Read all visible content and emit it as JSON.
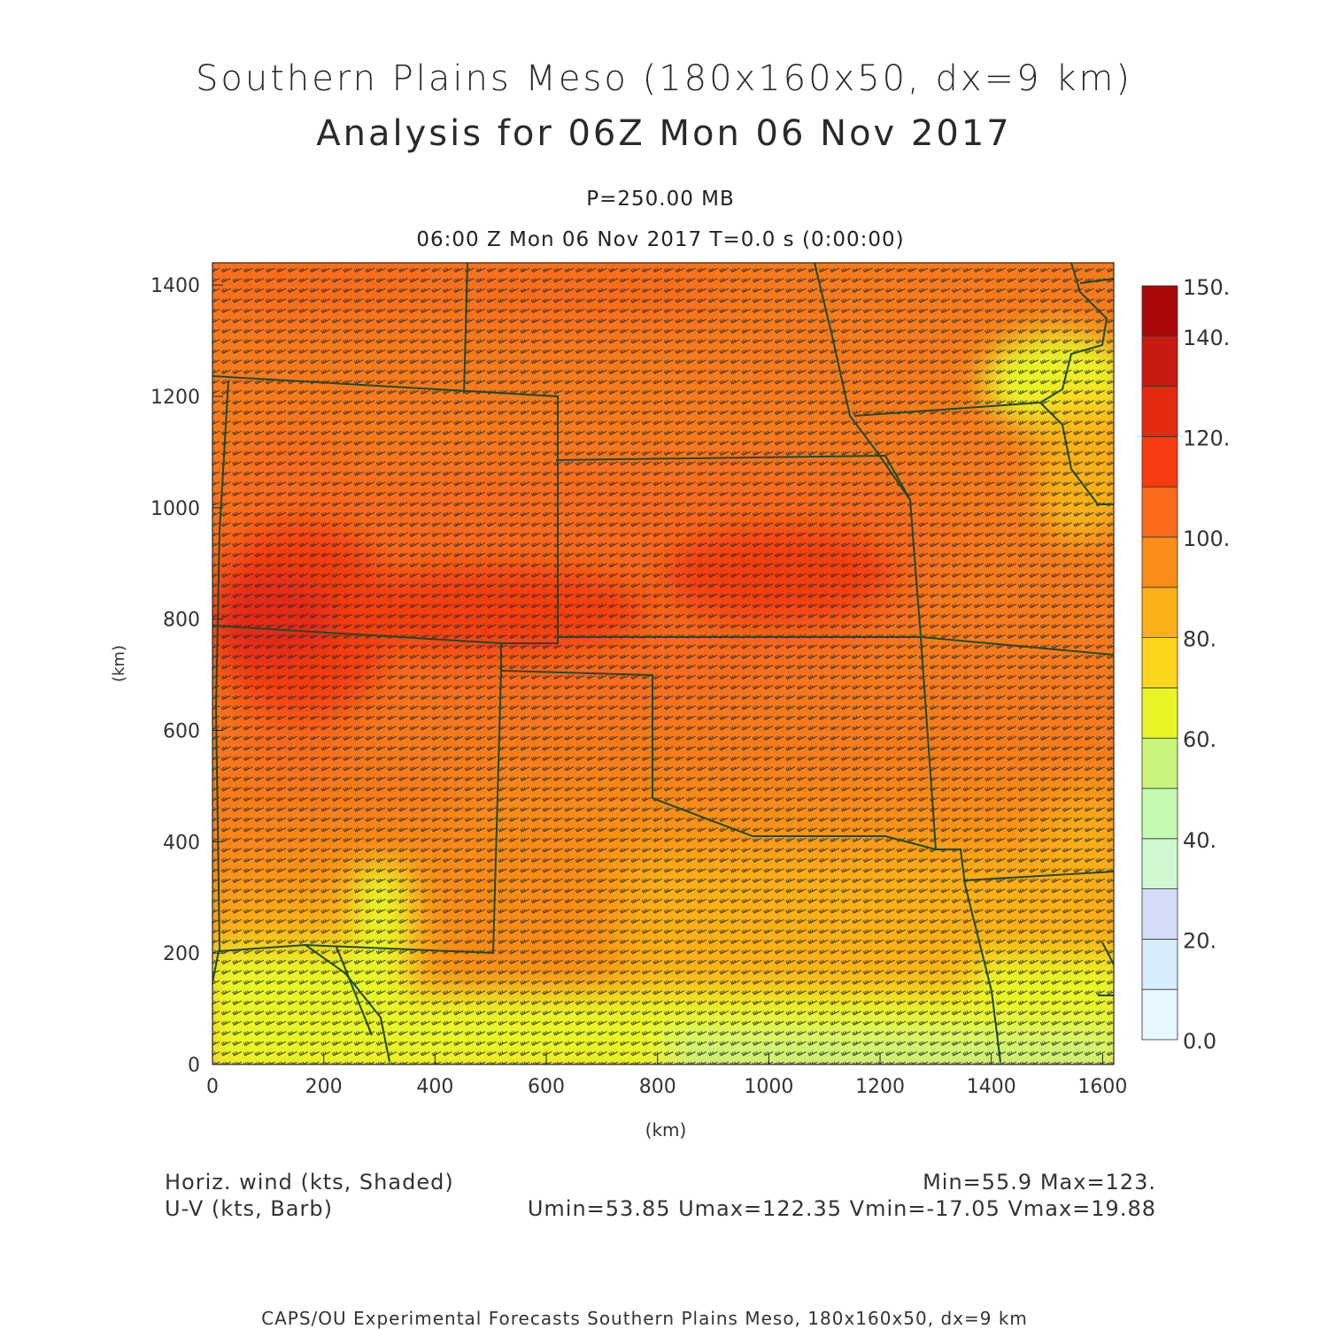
{
  "header": {
    "title_line1": "Southern Plains Meso (180x160x50, dx=9 km)",
    "title_line2": "Analysis for 06Z Mon 06 Nov 2017",
    "level": "P=250.00 MB",
    "time": "06:00 Z Mon 06 Nov 2017    T=0.0 s (0:00:00)"
  },
  "axes": {
    "x_label": "(km)",
    "y_label": "(km)",
    "x_ticks": [
      0,
      200,
      400,
      600,
      800,
      1000,
      1200,
      1400,
      1600
    ],
    "y_ticks": [
      0,
      200,
      400,
      600,
      800,
      1000,
      1200,
      1400
    ],
    "x_range": [
      0,
      1620
    ],
    "y_range": [
      0,
      1440
    ]
  },
  "colorbar": {
    "labels": [
      "0.0",
      "20.",
      "40.",
      "60.",
      "80.",
      "100.",
      "120.",
      "140.",
      "150."
    ],
    "bins": [
      {
        "lo": 0,
        "hi": 10,
        "color": "#e6f7ff"
      },
      {
        "lo": 10,
        "hi": 20,
        "color": "#d5edfd"
      },
      {
        "lo": 20,
        "hi": 30,
        "color": "#d5def8"
      },
      {
        "lo": 30,
        "hi": 40,
        "color": "#d0f8d0"
      },
      {
        "lo": 40,
        "hi": 50,
        "color": "#c4fbb0"
      },
      {
        "lo": 50,
        "hi": 60,
        "color": "#c9f57b"
      },
      {
        "lo": 60,
        "hi": 70,
        "color": "#e8f628"
      },
      {
        "lo": 70,
        "hi": 80,
        "color": "#fbd41c"
      },
      {
        "lo": 80,
        "hi": 90,
        "color": "#fbb018"
      },
      {
        "lo": 90,
        "hi": 100,
        "color": "#fa8c19"
      },
      {
        "lo": 100,
        "hi": 110,
        "color": "#f96a1a"
      },
      {
        "lo": 110,
        "hi": 120,
        "color": "#f63c0f"
      },
      {
        "lo": 120,
        "hi": 130,
        "color": "#e52a12"
      },
      {
        "lo": 130,
        "hi": 140,
        "color": "#c81a10"
      },
      {
        "lo": 140,
        "hi": 150,
        "color": "#a80808"
      }
    ]
  },
  "legend": {
    "field1": "Horiz. wind (kts, Shaded)",
    "field2": "U-V (kts, Barb)",
    "stats1": "Min=55.9  Max=123.",
    "stats2": "Umin=53.85  Umax=122.35  Vmin=-17.05  Vmax=19.88"
  },
  "footer": {
    "credits": "CAPS/OU Experimental Forecasts   Southern Plains Meso, 180x160x50, dx=9 km"
  },
  "colors": {
    "background_field": "#f77b1c",
    "boundary": "#1f4a2a",
    "barb": "#333333"
  }
}
